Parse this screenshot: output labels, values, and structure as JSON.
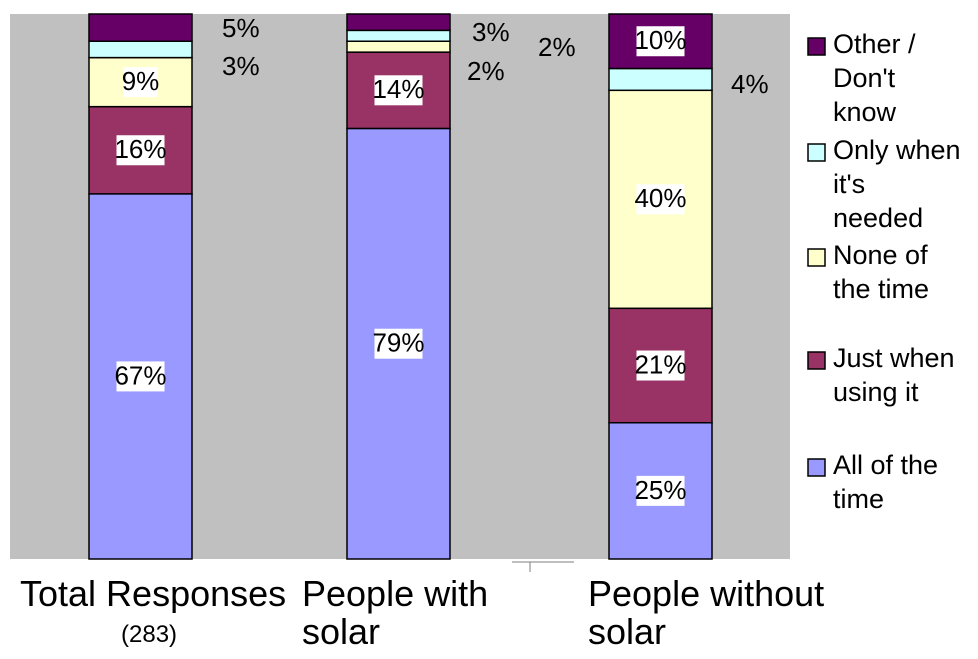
{
  "chart_data": {
    "type": "bar",
    "stacked": true,
    "categories": [
      "Total Responses",
      "People with solar",
      "People without solar"
    ],
    "category_notes": [
      "(283)",
      "",
      ""
    ],
    "series": [
      {
        "name": "All of the time",
        "values": [
          67,
          79,
          25
        ],
        "labels": [
          "67%",
          "79%",
          "25%"
        ],
        "color": "#9999ff"
      },
      {
        "name": "Just when using it",
        "values": [
          16,
          14,
          21
        ],
        "labels": [
          "16%",
          "14%",
          "21%"
        ],
        "color": "#993366"
      },
      {
        "name": "None of the time",
        "values": [
          9,
          2,
          40
        ],
        "labels": [
          "9%",
          "2%",
          "40%"
        ],
        "color": "#ffffcc"
      },
      {
        "name": "Only when it's needed",
        "values": [
          3,
          2,
          4
        ],
        "labels": [
          "3%",
          "2%",
          "4%"
        ],
        "color": "#ccffff"
      },
      {
        "name": "Other / Don't know",
        "values": [
          5,
          3,
          10
        ],
        "labels": [
          "5%",
          "3%",
          "10%"
        ],
        "color": "#660066"
      }
    ],
    "ylim": [
      0,
      100
    ],
    "grid": false,
    "legend_position": "right",
    "plot_background": "#c0c0c0",
    "legend_lines": [
      [
        "Other /",
        "Don't",
        "know"
      ],
      [
        "Only when",
        "it's",
        "needed"
      ],
      [
        "None of",
        "the time"
      ],
      [
        "Just when",
        "using it"
      ],
      [
        "All of the",
        "time"
      ]
    ]
  }
}
